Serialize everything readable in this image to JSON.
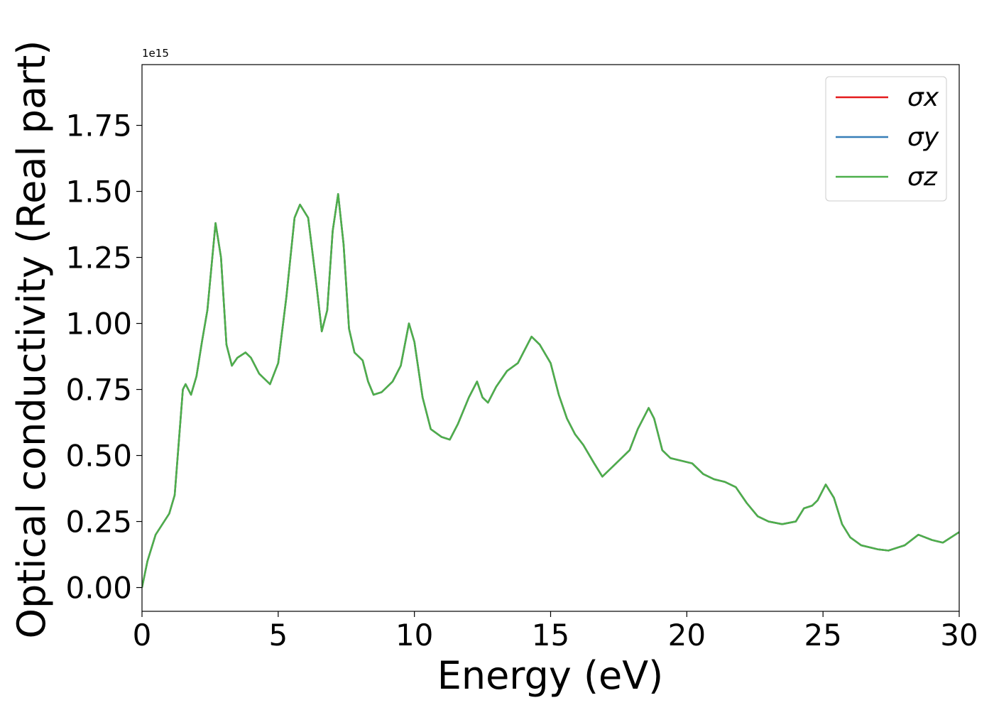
{
  "chart_data": {
    "type": "line",
    "ylabel": "Optical conductivity (Real part)",
    "xlabel": "Energy (eV)",
    "y_offset_label": "1e15",
    "xlim": [
      0,
      30
    ],
    "ylim": [
      -0.09,
      1.98
    ],
    "xticks": [
      0,
      5,
      10,
      15,
      20,
      25,
      30
    ],
    "yticks": [
      {
        "value": 0,
        "label": "0.00"
      },
      {
        "value": 0.25,
        "label": "0.25"
      },
      {
        "value": 0.5,
        "label": "0.50"
      },
      {
        "value": 0.75,
        "label": "0.75"
      },
      {
        "value": 1,
        "label": "1.00"
      },
      {
        "value": 1.25,
        "label": "1.25"
      },
      {
        "value": 1.5,
        "label": "1.50"
      },
      {
        "value": 1.75,
        "label": "1.75"
      }
    ],
    "grid": false,
    "legend": "upper right",
    "x": [
      0,
      0.2,
      0.5,
      1.0,
      1.2,
      1.5,
      1.6,
      1.8,
      2.0,
      2.2,
      2.4,
      2.7,
      2.9,
      3.1,
      3.3,
      3.5,
      3.8,
      4.0,
      4.3,
      4.7,
      5.0,
      5.3,
      5.6,
      5.8,
      6.1,
      6.4,
      6.6,
      6.8,
      7.0,
      7.2,
      7.4,
      7.6,
      7.8,
      8.1,
      8.3,
      8.5,
      8.8,
      9.2,
      9.5,
      9.8,
      10.0,
      10.3,
      10.6,
      11.0,
      11.3,
      11.6,
      12.0,
      12.3,
      12.5,
      12.7,
      13.0,
      13.4,
      13.8,
      14.0,
      14.3,
      14.6,
      15.0,
      15.3,
      15.6,
      15.9,
      16.2,
      16.6,
      16.9,
      17.2,
      17.5,
      17.9,
      18.2,
      18.6,
      18.8,
      19.1,
      19.4,
      19.8,
      20.2,
      20.6,
      21.0,
      21.4,
      21.8,
      22.2,
      22.6,
      23.0,
      23.5,
      24.0,
      24.3,
      24.6,
      24.8,
      25.1,
      25.4,
      25.7,
      26.0,
      26.4,
      27.0,
      27.4,
      28.0,
      28.5,
      29.0,
      29.4,
      30
    ],
    "series": [
      {
        "name": "σx",
        "color": "#e41a1c",
        "values": [
          0.0,
          0.1,
          0.2,
          0.28,
          0.35,
          0.75,
          0.77,
          0.73,
          0.8,
          0.93,
          1.05,
          1.38,
          1.25,
          0.92,
          0.84,
          0.87,
          0.89,
          0.87,
          0.81,
          0.77,
          0.85,
          1.1,
          1.4,
          1.45,
          1.4,
          1.15,
          0.97,
          1.05,
          1.35,
          1.49,
          1.3,
          0.98,
          0.89,
          0.86,
          0.78,
          0.73,
          0.74,
          0.78,
          0.84,
          1.0,
          0.93,
          0.72,
          0.6,
          0.57,
          0.56,
          0.62,
          0.72,
          0.78,
          0.72,
          0.7,
          0.76,
          0.82,
          0.85,
          0.89,
          0.95,
          0.92,
          0.85,
          0.73,
          0.64,
          0.58,
          0.54,
          0.47,
          0.42,
          0.45,
          0.48,
          0.52,
          0.6,
          0.68,
          0.64,
          0.52,
          0.49,
          0.48,
          0.47,
          0.43,
          0.41,
          0.4,
          0.38,
          0.32,
          0.27,
          0.25,
          0.24,
          0.25,
          0.3,
          0.31,
          0.33,
          0.39,
          0.34,
          0.24,
          0.19,
          0.16,
          0.145,
          0.14,
          0.16,
          0.2,
          0.18,
          0.17,
          0.21
        ]
      },
      {
        "name": "σy",
        "color": "#377eb8",
        "values": [
          0.0,
          0.1,
          0.2,
          0.28,
          0.35,
          0.75,
          0.77,
          0.73,
          0.8,
          0.93,
          1.05,
          1.38,
          1.25,
          0.92,
          0.84,
          0.87,
          0.89,
          0.87,
          0.81,
          0.77,
          0.85,
          1.1,
          1.4,
          1.45,
          1.4,
          1.15,
          0.97,
          1.05,
          1.35,
          1.49,
          1.3,
          0.98,
          0.89,
          0.86,
          0.78,
          0.73,
          0.74,
          0.78,
          0.84,
          1.0,
          0.93,
          0.72,
          0.6,
          0.57,
          0.56,
          0.62,
          0.72,
          0.78,
          0.72,
          0.7,
          0.76,
          0.82,
          0.85,
          0.89,
          0.95,
          0.92,
          0.85,
          0.73,
          0.64,
          0.58,
          0.54,
          0.47,
          0.42,
          0.45,
          0.48,
          0.52,
          0.6,
          0.68,
          0.64,
          0.52,
          0.49,
          0.48,
          0.47,
          0.43,
          0.41,
          0.4,
          0.38,
          0.32,
          0.27,
          0.25,
          0.24,
          0.25,
          0.3,
          0.31,
          0.33,
          0.39,
          0.34,
          0.24,
          0.19,
          0.16,
          0.145,
          0.14,
          0.16,
          0.2,
          0.18,
          0.17,
          0.21
        ]
      },
      {
        "name": "σz",
        "color": "#4daf4a",
        "values": [
          0.0,
          0.1,
          0.2,
          0.28,
          0.35,
          0.75,
          0.77,
          0.73,
          0.8,
          0.93,
          1.05,
          1.38,
          1.25,
          0.92,
          0.84,
          0.87,
          0.89,
          0.87,
          0.81,
          0.77,
          0.85,
          1.1,
          1.4,
          1.45,
          1.4,
          1.15,
          0.97,
          1.05,
          1.35,
          1.49,
          1.3,
          0.98,
          0.89,
          0.86,
          0.78,
          0.73,
          0.74,
          0.78,
          0.84,
          1.0,
          0.93,
          0.72,
          0.6,
          0.57,
          0.56,
          0.62,
          0.72,
          0.78,
          0.72,
          0.7,
          0.76,
          0.82,
          0.85,
          0.89,
          0.95,
          0.92,
          0.85,
          0.73,
          0.64,
          0.58,
          0.54,
          0.47,
          0.42,
          0.45,
          0.48,
          0.52,
          0.6,
          0.68,
          0.64,
          0.52,
          0.49,
          0.48,
          0.47,
          0.43,
          0.41,
          0.4,
          0.38,
          0.32,
          0.27,
          0.25,
          0.24,
          0.25,
          0.3,
          0.31,
          0.33,
          0.39,
          0.34,
          0.24,
          0.19,
          0.16,
          0.145,
          0.14,
          0.16,
          0.2,
          0.18,
          0.17,
          0.21
        ]
      }
    ]
  }
}
